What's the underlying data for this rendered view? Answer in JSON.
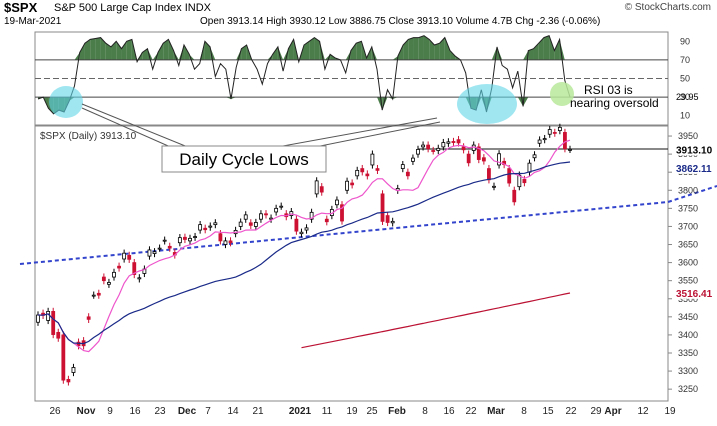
{
  "header": {
    "symbol": "$SPX",
    "name": "S&P 500 Large Cap Index",
    "exchange": "INDX",
    "date": "19-Mar-2021",
    "ohlc": "Open 3913.14  High 3930.12  Low 3886.75  Close 3913.10  Volume 4.7B  Chg -2.36 (-0.06%)",
    "brand": "© StockCharts.com"
  },
  "colors": {
    "up": "#ffffff",
    "down": "#cc1133",
    "sma_short": "#ee55cc",
    "sma_mid": "#1a2a88",
    "sma_long": "#bb1133",
    "trendline": "#3333cc",
    "rsi_fill": "#4b7d4b",
    "highlight_blue": "#5fd6e8",
    "highlight_green": "#b8e89a"
  },
  "chart_data": [
    {
      "type": "line",
      "title": "RSI",
      "yticks": [
        "90",
        "70",
        "50",
        "30",
        "10"
      ],
      "ylim": [
        0,
        100
      ],
      "overbought": 70,
      "oversold": 30,
      "last_value_label": "29.95",
      "x": [
        "10-21",
        "10-22",
        "10-23",
        "10-26",
        "10-27",
        "10-28",
        "10-29",
        "10-30",
        "11-02",
        "11-03",
        "11-04",
        "11-05",
        "11-06",
        "11-09",
        "11-10",
        "11-11",
        "11-12",
        "11-13",
        "11-16",
        "11-17",
        "11-18",
        "11-19",
        "11-20",
        "11-23",
        "11-24",
        "11-25",
        "11-27",
        "11-30",
        "12-01",
        "12-02",
        "12-03",
        "12-04",
        "12-07",
        "12-08",
        "12-09",
        "12-10",
        "12-11",
        "12-14",
        "12-15",
        "12-16",
        "12-17",
        "12-18",
        "12-21",
        "12-22",
        "12-23",
        "12-24",
        "12-28",
        "12-29",
        "12-30",
        "12-31",
        "01-04",
        "01-05",
        "01-06",
        "01-07",
        "01-08",
        "01-11",
        "01-12",
        "01-13",
        "01-14",
        "01-15",
        "01-19",
        "01-20",
        "01-21",
        "01-22",
        "01-25",
        "01-26",
        "01-27",
        "01-28",
        "01-29",
        "02-01",
        "02-02",
        "02-03",
        "02-04",
        "02-05",
        "02-08",
        "02-09",
        "02-10",
        "02-11",
        "02-12",
        "02-16",
        "02-17",
        "02-18",
        "02-19",
        "02-22",
        "02-23",
        "02-24",
        "02-25",
        "02-26",
        "03-01",
        "03-02",
        "03-03",
        "03-04",
        "03-05",
        "03-08",
        "03-09",
        "03-10",
        "03-11",
        "03-12",
        "03-15",
        "03-16",
        "03-17",
        "03-18",
        "03-19"
      ],
      "values": [
        28,
        30,
        18,
        12,
        16,
        14,
        26,
        42,
        78,
        88,
        92,
        93,
        94,
        88,
        84,
        90,
        82,
        90,
        92,
        68,
        78,
        82,
        60,
        78,
        88,
        92,
        80,
        64,
        86,
        76,
        60,
        66,
        90,
        84,
        52,
        66,
        60,
        28,
        62,
        82,
        86,
        70,
        60,
        44,
        66,
        76,
        84,
        58,
        82,
        92,
        68,
        86,
        90,
        94,
        90,
        60,
        76,
        72,
        70,
        56,
        80,
        88,
        90,
        72,
        84,
        60,
        16,
        38,
        28,
        74,
        86,
        92,
        94,
        94,
        96,
        92,
        86,
        88,
        94,
        80,
        74,
        70,
        56,
        18,
        16,
        38,
        14,
        40,
        84,
        64,
        60,
        40,
        58,
        20,
        80,
        82,
        88,
        94,
        96,
        80,
        92,
        48,
        30
      ]
    },
    {
      "type": "line",
      "title": "$SPX (Daily) 3913.10",
      "yticks": [
        "3950",
        "3900",
        "3850",
        "3800",
        "3750",
        "3700",
        "3650",
        "3600",
        "3550",
        "3500",
        "3450",
        "3400",
        "3350",
        "3300",
        "3250"
      ],
      "ylim": [
        3220,
        3975
      ],
      "last_price_label": "3913.10",
      "sma_mid_label": "3862.11",
      "sma_long_label": "3516.41",
      "xticks": [
        "26",
        "Nov",
        "9",
        "16",
        "23",
        "Dec",
        "7",
        "14",
        "21",
        "2021",
        "11",
        "19",
        "25",
        "Feb",
        "8",
        "16",
        "22",
        "Mar",
        "8",
        "15",
        "22",
        "29",
        "Apr",
        "12",
        "19"
      ],
      "closes": [
        3455,
        3454,
        3465,
        3401,
        3391,
        3275,
        3270,
        3310,
        3370,
        3370,
        3443,
        3510,
        3510,
        3550,
        3545,
        3573,
        3585,
        3626,
        3609,
        3567,
        3558,
        3582,
        3635,
        3630,
        3640,
        3662,
        3640,
        3621,
        3669,
        3664,
        3667,
        3672,
        3705,
        3691,
        3701,
        3710,
        3660,
        3660,
        3655,
        3689,
        3712,
        3732,
        3703,
        3711,
        3735,
        3732,
        3723,
        3750,
        3756,
        3727,
        3741,
        3687,
        3684,
        3696,
        3739,
        3826,
        3795,
        3713,
        3747,
        3773,
        3715,
        3825,
        3815,
        3855,
        3851,
        3840,
        3900,
        3855,
        3714,
        3711,
        3714,
        3805,
        3871,
        3840,
        3889,
        3913,
        3925,
        3915,
        3909,
        3916,
        3932,
        3934,
        3932,
        3931,
        3912,
        3876,
        3925,
        3885,
        3881,
        3829,
        3811,
        3901,
        3871,
        3820,
        3768,
        3842,
        3821,
        3875,
        3898,
        3939,
        3943,
        3968,
        3958,
        3974,
        3915,
        3913
      ],
      "opens": [
        3435,
        3460,
        3440,
        3465,
        3407,
        3400,
        3277,
        3296,
        3380,
        3384,
        3450,
        3510,
        3515,
        3560,
        3540,
        3560,
        3590,
        3610,
        3620,
        3600,
        3555,
        3570,
        3618,
        3625,
        3640,
        3660,
        3645,
        3628,
        3655,
        3670,
        3660,
        3670,
        3690,
        3695,
        3698,
        3705,
        3680,
        3650,
        3660,
        3680,
        3700,
        3720,
        3710,
        3700,
        3720,
        3735,
        3720,
        3740,
        3756,
        3735,
        3730,
        3720,
        3680,
        3690,
        3720,
        3790,
        3810,
        3720,
        3730,
        3760,
        3760,
        3800,
        3820,
        3840,
        3860,
        3845,
        3870,
        3860,
        3790,
        3730,
        3710,
        3800,
        3860,
        3850,
        3880,
        3900,
        3920,
        3925,
        3910,
        3910,
        3920,
        3930,
        3935,
        3940,
        3920,
        3900,
        3910,
        3920,
        3890,
        3860,
        3810,
        3870,
        3880,
        3860,
        3800,
        3810,
        3830,
        3850,
        3890,
        3930,
        3940,
        3955,
        3960,
        3965,
        3960,
        3913
      ]
    }
  ],
  "annotations": {
    "daily_cycle_lows": "Daily Cycle Lows",
    "rsi_note_1": "RSI 03 is",
    "rsi_note_2": "nearing oversold"
  }
}
